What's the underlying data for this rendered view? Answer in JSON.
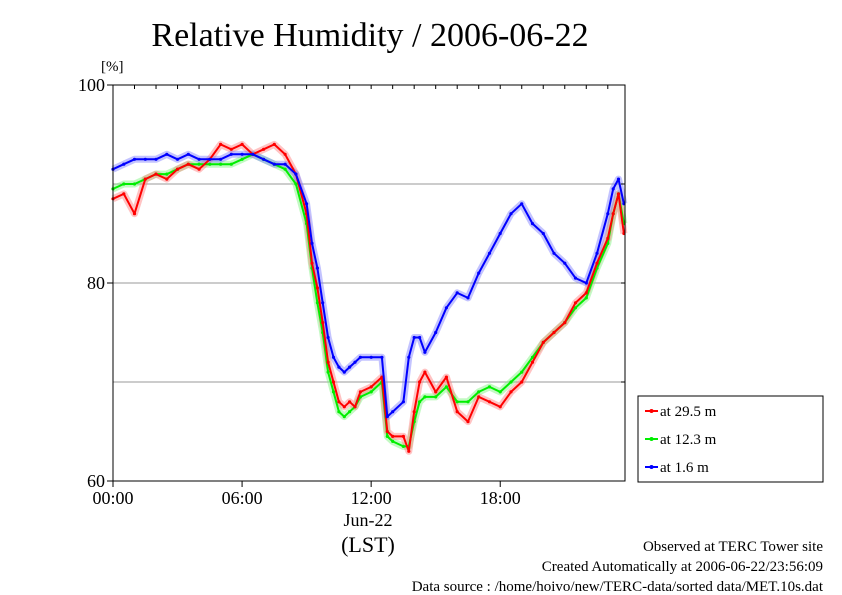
{
  "chart_data": {
    "type": "line",
    "title": "Relative Humidity / 2006-06-22",
    "ylabel": "[%]",
    "ylim": [
      60,
      100
    ],
    "yticks": [
      60,
      80,
      100
    ],
    "ygrid": [
      70,
      80,
      90
    ],
    "xlim": [
      0,
      23.8
    ],
    "xticks": [
      {
        "x": 0,
        "label": "00:00"
      },
      {
        "x": 6,
        "label": "06:00"
      },
      {
        "x": 12,
        "label": "12:00"
      },
      {
        "x": 18,
        "label": "18:00"
      }
    ],
    "date_label": "Jun-22",
    "time_zone_label": "(LST)",
    "legend_position": "outside-right-bottom",
    "series": [
      {
        "name": "at 29.5 m",
        "color": "#ff0000",
        "x": [
          0,
          0.5,
          1,
          1.5,
          2,
          2.5,
          3,
          3.5,
          4,
          4.5,
          5,
          5.5,
          6,
          6.5,
          7,
          7.5,
          8,
          8.5,
          9,
          9.25,
          9.5,
          9.75,
          10,
          10.25,
          10.5,
          10.75,
          11,
          11.25,
          11.5,
          12,
          12.5,
          12.75,
          13,
          13.5,
          13.75,
          14,
          14.25,
          14.5,
          15,
          15.5,
          16,
          16.5,
          17,
          17.5,
          18,
          18.5,
          19,
          19.5,
          20,
          20.5,
          21,
          21.5,
          22,
          22.5,
          23,
          23.25,
          23.5,
          23.75
        ],
        "values": [
          88.5,
          89,
          87,
          90.5,
          91,
          90.5,
          91.5,
          92,
          91.5,
          92.5,
          94,
          93.5,
          94,
          93,
          93.5,
          94,
          93,
          91,
          87,
          82,
          79.5,
          76,
          72,
          70,
          68,
          67.5,
          68,
          67.5,
          69,
          69.5,
          70.5,
          65,
          64.5,
          64.5,
          63,
          67,
          70,
          71,
          69,
          70.5,
          67,
          66,
          68.5,
          68,
          67.5,
          69,
          70,
          72,
          74,
          75,
          76,
          78,
          79,
          82,
          84.5,
          87,
          89,
          85
        ]
      },
      {
        "name": "at 12.3 m",
        "color": "#00ee00",
        "x": [
          0,
          0.5,
          1,
          1.5,
          2,
          2.5,
          3,
          3.5,
          4,
          4.5,
          5,
          5.5,
          6,
          6.5,
          7,
          7.5,
          8,
          8.5,
          9,
          9.25,
          9.5,
          9.75,
          10,
          10.25,
          10.5,
          10.75,
          11,
          11.25,
          11.5,
          12,
          12.5,
          12.75,
          13,
          13.5,
          13.75,
          14,
          14.25,
          14.5,
          15,
          15.5,
          16,
          16.5,
          17,
          17.5,
          18,
          18.5,
          19,
          19.5,
          20,
          20.5,
          21,
          21.5,
          22,
          22.5,
          23,
          23.25,
          23.5,
          23.75
        ],
        "values": [
          89.5,
          90,
          90,
          90.5,
          91,
          91,
          91.5,
          92,
          92,
          92,
          92,
          92,
          92.5,
          93,
          92.5,
          92,
          91.5,
          90,
          86,
          81.5,
          78,
          75,
          71,
          69,
          67,
          66.5,
          67,
          67.5,
          68.5,
          69,
          70,
          64.5,
          64,
          63.5,
          63.5,
          66,
          68,
          68.5,
          68.5,
          69.5,
          68,
          68,
          69,
          69.5,
          69,
          70,
          71,
          72.5,
          74,
          75,
          76,
          77.5,
          78.5,
          81.5,
          84,
          87,
          89,
          86
        ]
      },
      {
        "name": "at 1.6 m",
        "color": "#0000ff",
        "x": [
          0,
          0.5,
          1,
          1.5,
          2,
          2.5,
          3,
          3.5,
          4,
          4.5,
          5,
          5.5,
          6,
          6.5,
          7,
          7.5,
          8,
          8.5,
          9,
          9.25,
          9.5,
          9.75,
          10,
          10.25,
          10.5,
          10.75,
          11,
          11.25,
          11.5,
          12,
          12.5,
          12.75,
          13,
          13.5,
          13.75,
          14,
          14.25,
          14.5,
          15,
          15.5,
          16,
          16.5,
          17,
          17.5,
          18,
          18.5,
          19,
          19.5,
          20,
          20.5,
          21,
          21.5,
          22,
          22.5,
          23,
          23.25,
          23.5,
          23.75
        ],
        "values": [
          91.5,
          92,
          92.5,
          92.5,
          92.5,
          93,
          92.5,
          93,
          92.5,
          92.5,
          92.5,
          93,
          93,
          93,
          92.5,
          92,
          92,
          91,
          88,
          84,
          81.5,
          78,
          74.5,
          72.5,
          71.5,
          71,
          71.5,
          72,
          72.5,
          72.5,
          72.5,
          66.5,
          67,
          68,
          72.5,
          74.5,
          74.5,
          73,
          75,
          77.5,
          79,
          78.5,
          81,
          83,
          85,
          87,
          88,
          86,
          85,
          83,
          82,
          80.5,
          80,
          83,
          87,
          89.5,
          90.5,
          88
        ]
      }
    ]
  },
  "footer": {
    "line1": "Observed at TERC Tower site",
    "line2": "Created Automatically at 2006-06-22/23:56:09",
    "line3": "Data source : /home/hoivo/new/TERC-data/sorted  data/MET.10s.dat"
  }
}
